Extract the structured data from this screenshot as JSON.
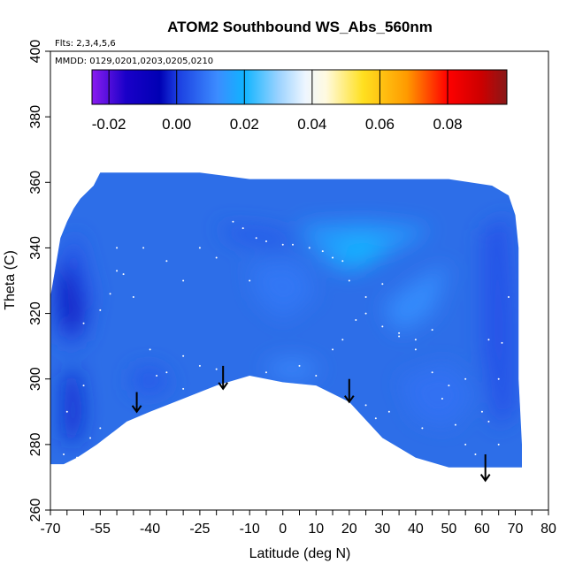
{
  "chart_data": {
    "type": "heatmap",
    "title": "ATOM2 Southbound WS_Abs_560nm",
    "annotations": {
      "flights": "Flts: 2,3,4,5,6",
      "dates": "MMDD: 0129,0201,0203,0205,0210"
    },
    "xlabel": "Latitude (deg N)",
    "ylabel": "Theta (C)",
    "xlim": [
      -70,
      80
    ],
    "ylim": [
      260,
      400
    ],
    "x_ticks": [
      -70,
      -55,
      -40,
      -25,
      -10,
      0,
      10,
      20,
      30,
      40,
      50,
      60,
      70,
      80
    ],
    "x_tick_labels": [
      "-70",
      "-55",
      "-40",
      "-25",
      "-10",
      "0",
      "10",
      "20",
      "30",
      "40",
      "50",
      "60",
      "70",
      "80"
    ],
    "y_ticks": [
      260,
      280,
      300,
      320,
      340,
      360,
      380,
      400
    ],
    "y_tick_labels": [
      "260",
      "280",
      "300",
      "320",
      "340",
      "360",
      "380",
      "400"
    ],
    "colorbar": {
      "range": [
        -0.025,
        0.0975
      ],
      "ticks": [
        -0.02,
        0.0,
        0.02,
        0.04,
        0.06,
        0.08
      ],
      "tick_labels": [
        "-0.02",
        "0.00",
        "0.02",
        "0.04",
        "0.06",
        "0.08"
      ],
      "stops": [
        {
          "v": -0.025,
          "c": "#8a1cf0"
        },
        {
          "v": -0.015,
          "c": "#1a00c8"
        },
        {
          "v": -0.005,
          "c": "#0000b4"
        },
        {
          "v": 0.0,
          "c": "#1a3ce0"
        },
        {
          "v": 0.012,
          "c": "#3c8cff"
        },
        {
          "v": 0.02,
          "c": "#10b4ff"
        },
        {
          "v": 0.03,
          "c": "#9ad2ff"
        },
        {
          "v": 0.038,
          "c": "#eef6ff"
        },
        {
          "v": 0.044,
          "c": "#fffae0"
        },
        {
          "v": 0.055,
          "c": "#ffe020"
        },
        {
          "v": 0.068,
          "c": "#ff9a00"
        },
        {
          "v": 0.08,
          "c": "#ff0000"
        },
        {
          "v": 0.09,
          "c": "#cc0000"
        },
        {
          "v": 0.0975,
          "c": "#881818"
        }
      ]
    },
    "field_outline": [
      [
        -70,
        274
      ],
      [
        -70,
        325
      ],
      [
        -69,
        331
      ],
      [
        -67,
        343
      ],
      [
        -65,
        348
      ],
      [
        -63,
        352
      ],
      [
        -61,
        355
      ],
      [
        -57,
        359
      ],
      [
        -55,
        363
      ],
      [
        -50,
        363
      ],
      [
        -40,
        363
      ],
      [
        -25,
        363
      ],
      [
        -10,
        361
      ],
      [
        10,
        361
      ],
      [
        30,
        361
      ],
      [
        50,
        361
      ],
      [
        63,
        359
      ],
      [
        68,
        356
      ],
      [
        70,
        350
      ],
      [
        71,
        340
      ],
      [
        71,
        320
      ],
      [
        71,
        300
      ],
      [
        72,
        280
      ],
      [
        72,
        273
      ],
      [
        60,
        273
      ],
      [
        50,
        273
      ],
      [
        40,
        276
      ],
      [
        30,
        282
      ],
      [
        20,
        293
      ],
      [
        10,
        298
      ],
      [
        0,
        299
      ],
      [
        -10,
        301
      ],
      [
        -20,
        298
      ],
      [
        -30,
        294
      ],
      [
        -40,
        290
      ],
      [
        -47,
        287
      ],
      [
        -56,
        280
      ],
      [
        -62,
        276
      ],
      [
        -66,
        274
      ]
    ],
    "regions": [
      {
        "value": 0.003,
        "points": [
          [
            -68,
            335
          ],
          [
            -62,
            345
          ],
          [
            -57,
            325
          ],
          [
            -60,
            312
          ],
          [
            -66,
            310
          ],
          [
            -69,
            318
          ]
        ]
      },
      {
        "value": -0.004,
        "points": [
          [
            -68,
            330
          ],
          [
            -64,
            336
          ],
          [
            -60,
            320
          ],
          [
            -63,
            312
          ],
          [
            -67,
            318
          ]
        ]
      },
      {
        "value": -0.002,
        "points": [
          [
            -66,
            300
          ],
          [
            -62,
            304
          ],
          [
            -60,
            290
          ],
          [
            -62,
            280
          ],
          [
            -66,
            282
          ]
        ]
      },
      {
        "value": 0.004,
        "points": [
          [
            -45,
            303
          ],
          [
            -38,
            304
          ],
          [
            -33,
            298
          ],
          [
            -40,
            295
          ],
          [
            -46,
            297
          ]
        ]
      },
      {
        "value": 0.004,
        "points": [
          [
            -20,
            347
          ],
          [
            -5,
            346
          ],
          [
            5,
            343
          ],
          [
            0,
            340
          ],
          [
            -15,
            342
          ]
        ]
      },
      {
        "value": 0.016,
        "points": [
          [
            5,
            347
          ],
          [
            25,
            348
          ],
          [
            45,
            346
          ],
          [
            35,
            340
          ],
          [
            20,
            332
          ],
          [
            12,
            336
          ]
        ]
      },
      {
        "value": 0.02,
        "points": [
          [
            15,
            342
          ],
          [
            25,
            344
          ],
          [
            32,
            340
          ],
          [
            25,
            334
          ],
          [
            18,
            336
          ]
        ]
      },
      {
        "value": 0.013,
        "points": [
          [
            30,
            322
          ],
          [
            40,
            330
          ],
          [
            50,
            335
          ],
          [
            45,
            320
          ],
          [
            35,
            314
          ]
        ]
      },
      {
        "value": 0.009,
        "points": [
          [
            -10,
            335
          ],
          [
            5,
            336
          ],
          [
            10,
            326
          ],
          [
            0,
            318
          ],
          [
            -8,
            325
          ]
        ]
      },
      {
        "value": 0.003,
        "points": [
          [
            60,
            345
          ],
          [
            68,
            350
          ],
          [
            70,
            320
          ],
          [
            70,
            290
          ],
          [
            64,
            285
          ],
          [
            60,
            310
          ]
        ]
      },
      {
        "value": 0.012,
        "points": [
          [
            -5,
            305
          ],
          [
            5,
            306
          ],
          [
            12,
            303
          ],
          [
            5,
            300
          ],
          [
            -3,
            301
          ]
        ]
      },
      {
        "value": 0.008,
        "points": [
          [
            35,
            300
          ],
          [
            50,
            305
          ],
          [
            58,
            295
          ],
          [
            50,
            285
          ],
          [
            40,
            288
          ]
        ]
      }
    ],
    "sample_points": [
      [
        -47,
        283
      ],
      [
        -44,
        292
      ],
      [
        -38,
        301
      ],
      [
        -30,
        307
      ],
      [
        -25,
        304
      ],
      [
        -20,
        303
      ],
      [
        -15,
        299
      ],
      [
        -5,
        302
      ],
      [
        5,
        304
      ],
      [
        10,
        301
      ],
      [
        15,
        309
      ],
      [
        18,
        312
      ],
      [
        22,
        318
      ],
      [
        25,
        325
      ],
      [
        30,
        329
      ],
      [
        35,
        313
      ],
      [
        40,
        309
      ],
      [
        45,
        302
      ],
      [
        48,
        294
      ],
      [
        52,
        286
      ],
      [
        55,
        280
      ],
      [
        58,
        277
      ],
      [
        62,
        287
      ],
      [
        65,
        300
      ],
      [
        66,
        311
      ],
      [
        68,
        325
      ],
      [
        -60,
        317
      ],
      [
        -55,
        321
      ],
      [
        -52,
        326
      ],
      [
        -50,
        333
      ],
      [
        -48,
        332
      ],
      [
        -45,
        325
      ],
      [
        -40,
        309
      ],
      [
        -35,
        302
      ],
      [
        -30,
        297
      ],
      [
        -15,
        348
      ],
      [
        -12,
        346
      ],
      [
        -8,
        343
      ],
      [
        -5,
        342
      ],
      [
        0,
        341
      ],
      [
        3,
        341
      ],
      [
        8,
        340
      ],
      [
        12,
        339
      ],
      [
        15,
        337
      ],
      [
        18,
        336
      ],
      [
        20,
        330
      ],
      [
        25,
        320
      ],
      [
        30,
        316
      ],
      [
        35,
        314
      ],
      [
        40,
        312
      ],
      [
        -25,
        340
      ],
      [
        -20,
        337
      ],
      [
        -10,
        330
      ],
      [
        -65,
        290
      ],
      [
        -60,
        298
      ],
      [
        -58,
        282
      ],
      [
        -55,
        285
      ],
      [
        -62,
        276
      ],
      [
        -66,
        277
      ],
      [
        -68,
        272
      ],
      [
        55,
        300
      ],
      [
        60,
        290
      ],
      [
        65,
        280
      ],
      [
        50,
        298
      ],
      [
        45,
        315
      ],
      [
        62,
        312
      ],
      [
        42,
        285
      ],
      [
        32,
        290
      ],
      [
        28,
        288
      ],
      [
        25,
        292
      ],
      [
        -35,
        336
      ],
      [
        -30,
        330
      ],
      [
        -42,
        340
      ],
      [
        -50,
        340
      ]
    ],
    "arrows": [
      {
        "x": -44,
        "y_top": 296,
        "y_bottom": 290
      },
      {
        "x": -18,
        "y_top": 304,
        "y_bottom": 297
      },
      {
        "x": 20,
        "y_top": 300,
        "y_bottom": 293
      },
      {
        "x": 61,
        "y_top": 277,
        "y_bottom": 269
      }
    ]
  }
}
